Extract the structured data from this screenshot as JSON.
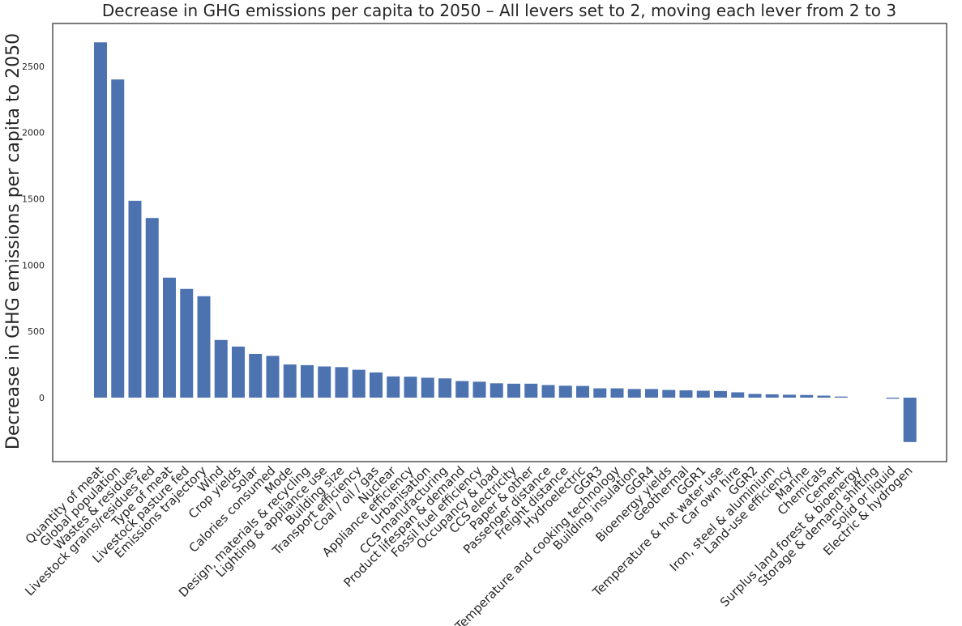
{
  "chart_data": {
    "type": "bar",
    "title": "Decrease in GHG emissions per capita to 2050 – All levers set to 2, moving each lever from 2 to 3",
    "xlabel": "",
    "ylabel": "Decrease in GHG emissions per capita to 2050",
    "ylim": [
      -500,
      2850
    ],
    "yticks": [
      0,
      500,
      1000,
      1500,
      2000,
      2500
    ],
    "grid": false,
    "bar_color": "#4c72b0",
    "categories": [
      "Quantity of meat",
      "Global population",
      "Wastes & residues",
      "Livestock grains/residues fed",
      "Type of meat",
      "Livestock pasture fed",
      "Emissions trajectory",
      "Wind",
      "Crop yields",
      "Solar",
      "Calories consumed",
      "Mode",
      "Design, materials & recycling",
      "Lighting & appliance use",
      "Building size",
      "Transport efficiency",
      "Coal / oil / gas",
      "Nuclear",
      "Appliance efficiency",
      "Urbanisation",
      "CCS manufacturing",
      "Product lifespan & demand",
      "Fossil fuel efficiency",
      "Occupancy & load",
      "CCS electricity",
      "Paper & other",
      "Passenger distance",
      "Freight distance",
      "Hydroelectric",
      "GGR3",
      "Temperature and cooking technology",
      "Building insulation",
      "GGR4",
      "Bioenergy yields",
      "Geothermal",
      "GGR1",
      "Temperature & hot water use",
      "Car own hire",
      "GGR2",
      "Iron, steel & aluminium",
      "Land-use efficiency",
      "Marine",
      "Chemicals",
      "Cement",
      "Surplus land forest & bioenergy",
      "Storage & demand shifting",
      "Solid or liquid",
      "Electric & hydrogen"
    ],
    "values": [
      2680,
      2400,
      1485,
      1355,
      905,
      820,
      765,
      435,
      385,
      330,
      315,
      250,
      245,
      235,
      230,
      210,
      190,
      160,
      158,
      150,
      145,
      125,
      120,
      108,
      105,
      105,
      95,
      90,
      88,
      70,
      70,
      65,
      65,
      58,
      55,
      52,
      50,
      40,
      28,
      25,
      22,
      20,
      15,
      8,
      0,
      0,
      -8,
      -335
    ]
  }
}
